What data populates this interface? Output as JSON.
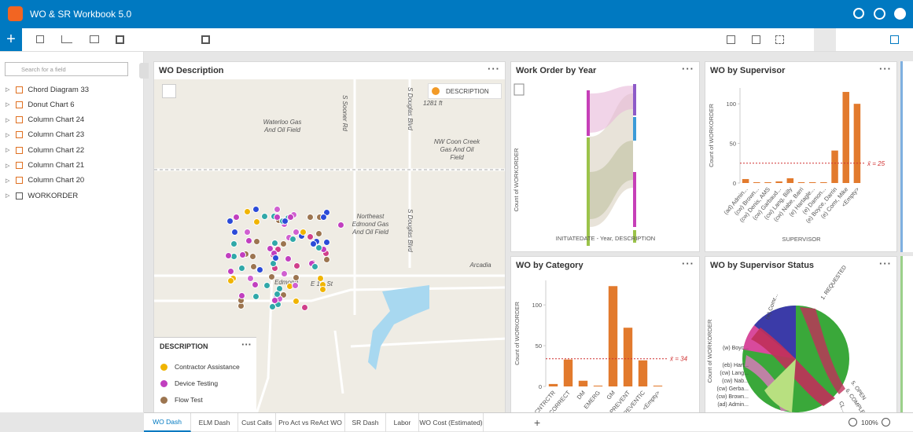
{
  "app": {
    "title": "WO & SR Workbook 5.0"
  },
  "sidebar": {
    "search_placeholder": "Search for a field",
    "items": [
      "Chord Diagram 33",
      "Donut Chart 6",
      "Column Chart 24",
      "Column Chart 23",
      "Column Chart 22",
      "Column Chart 21",
      "Column Chart 20",
      "WORKORDER"
    ]
  },
  "map_card": {
    "title": "WO Description",
    "layer_button": "DESCRIPTION",
    "scale": "1281 ft",
    "labels": [
      "S Sooner Rd",
      "S Douglas Blvd",
      "Waterloo Gas And Oil Field",
      "NW Coon Creek Gas And Oil Field",
      "Northeast Edmond Gas And Oil Field",
      "S Douglas Blvd",
      "Arcadia",
      "Edmond",
      "E 1st St"
    ],
    "legend": {
      "title": "DESCRIPTION",
      "items": [
        {
          "name": "Contractor Assistance",
          "color": "#f0b400"
        },
        {
          "name": "Device Testing",
          "color": "#c13fbf"
        },
        {
          "name": "Flow Test",
          "color": "#9c7550"
        }
      ]
    }
  },
  "sankey_card": {
    "title": "Work Order by Year",
    "y_label": "Count of WORKORDER",
    "x_label": "INITIATEDATE - Year, DESCRIPTION"
  },
  "supervisor_card": {
    "title": "WO by Supervisor",
    "chart": {
      "type": "bar",
      "color": "#e27a2d",
      "y_label": "Count of WORKORDER",
      "x_label": "SUPERVISOR",
      "categories": [
        "(ad) Admin...",
        "(cw) Brown...",
        "(cw) Denis, AMS",
        "(cw) Garbaud...",
        "(cw) Lang, Billy",
        "(cw) Nabe, Barri",
        "(e) Hartagle...",
        "(e) Damon...",
        "(e) Boyce, Darrin",
        "(e) Comr, Mike",
        "<Empty>"
      ],
      "values": [
        5,
        1,
        1,
        2,
        6,
        1,
        1,
        1,
        41,
        115,
        100
      ],
      "ylim": [
        0,
        120
      ],
      "yticks": [
        0,
        50,
        100
      ],
      "mean": 25,
      "mean_label": "x̄ = 25"
    }
  },
  "category_card": {
    "title": "WO by Category",
    "chart": {
      "type": "bar",
      "color": "#e27a2d",
      "y_label": "Count of WORKORDER",
      "categories": [
        "CNTRCTR",
        "CORRECT",
        "DM",
        "EMERG",
        "GM",
        "PREVENT",
        "PREVENTIC",
        "<Empty>"
      ],
      "values": [
        3,
        33,
        7,
        1,
        123,
        72,
        32,
        1
      ],
      "ylim": [
        0,
        130
      ],
      "yticks": [
        0,
        50,
        100
      ],
      "mean": 34,
      "mean_label": "x̄ = 34"
    }
  },
  "status_card": {
    "title": "WO by Supervisor Status",
    "y_label": "Count of WORKORDER",
    "labels": [
      "1. REQUESTED",
      "(w) Comr...",
      "(w) Boyc...",
      "(eb) Hart...",
      "(cw) Lang...",
      "(cw) Nab...",
      "(cw) Gerba...",
      "(cw) Brown...",
      "(ad) Admin...",
      "5. OPEN",
      "6. COMPLETE",
      "CL..."
    ]
  },
  "tabs": [
    "WO Dash",
    "ELM Dash",
    "Cust Calls",
    "Pro Act vs ReAct WO",
    "SR Dash",
    "Labor",
    "WO Cost (Estimated)"
  ],
  "zoom": "100%"
}
